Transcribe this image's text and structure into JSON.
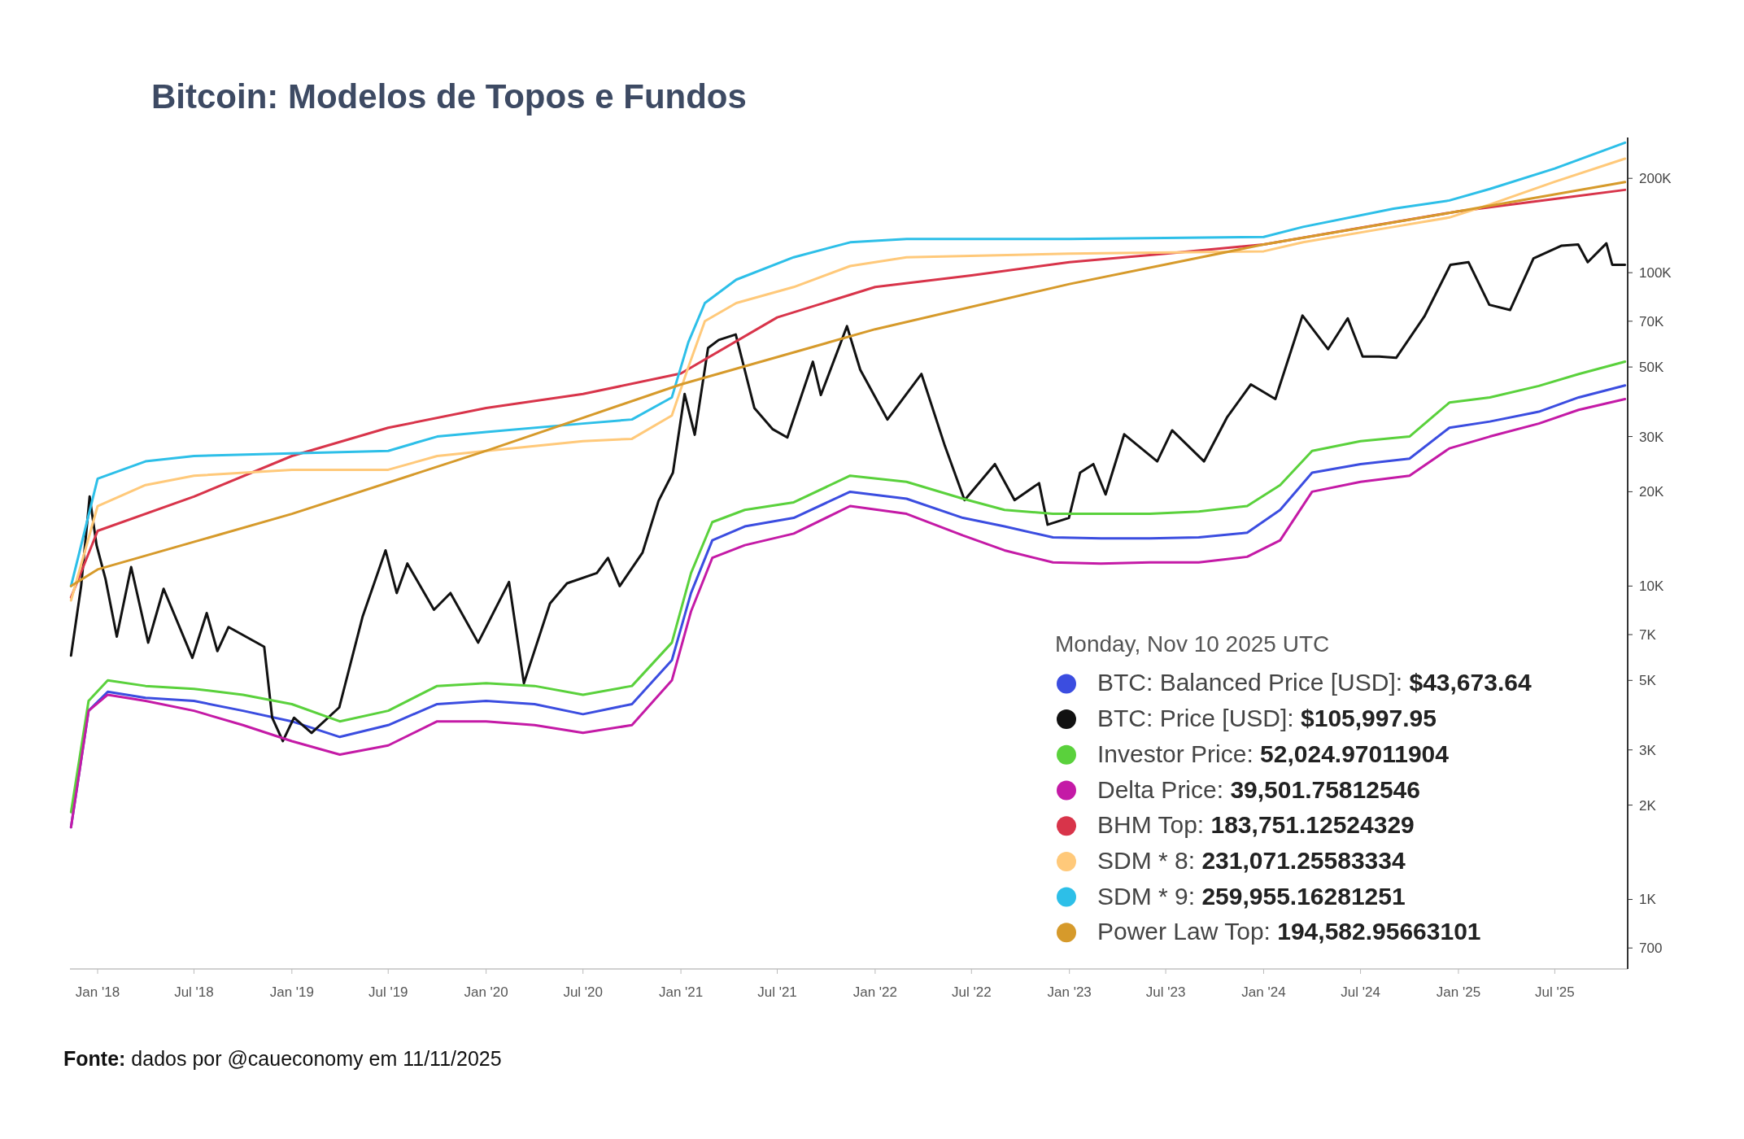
{
  "chart_data": {
    "type": "line",
    "title": "Bitcoin: Modelos de Topos e Fundos",
    "legend_title": "Monday, Nov 10 2025 UTC",
    "log": true,
    "grid": false,
    "legend": "bottom right",
    "xlim": [
      "2017-11-10",
      "2025-11-15"
    ],
    "ylim": [
      600,
      270000
    ],
    "xticks": [
      {
        "value": "2018-01-01",
        "label": "Jan '18"
      },
      {
        "value": "2018-07-01",
        "label": "Jul '18"
      },
      {
        "value": "2019-01-01",
        "label": "Jan '19"
      },
      {
        "value": "2019-07-01",
        "label": "Jul '19"
      },
      {
        "value": "2020-01-01",
        "label": "Jan '20"
      },
      {
        "value": "2020-07-01",
        "label": "Jul '20"
      },
      {
        "value": "2021-01-01",
        "label": "Jan '21"
      },
      {
        "value": "2021-07-01",
        "label": "Jul '21"
      },
      {
        "value": "2022-01-01",
        "label": "Jan '22"
      },
      {
        "value": "2022-07-01",
        "label": "Jul '22"
      },
      {
        "value": "2023-01-01",
        "label": "Jan '23"
      },
      {
        "value": "2023-07-01",
        "label": "Jul '23"
      },
      {
        "value": "2024-01-01",
        "label": "Jan '24"
      },
      {
        "value": "2024-07-01",
        "label": "Jul '24"
      },
      {
        "value": "2025-01-01",
        "label": "Jan '25"
      },
      {
        "value": "2025-07-01",
        "label": "Jul '25"
      }
    ],
    "yticks": [
      700,
      {
        "value": 1000,
        "label": "1K"
      },
      {
        "value": 2000,
        "label": "2K"
      },
      {
        "value": 3000,
        "label": "3K"
      },
      {
        "value": 5000,
        "label": "5K"
      },
      {
        "value": 7000,
        "label": "7K"
      },
      {
        "value": 10000,
        "label": "10K"
      },
      {
        "value": 20000,
        "label": "20K"
      },
      {
        "value": 30000,
        "label": "30K"
      },
      {
        "value": 50000,
        "label": "50K"
      },
      {
        "value": 70000,
        "label": "70K"
      },
      {
        "value": 100000,
        "label": "100K"
      },
      {
        "value": 200000,
        "label": "200K"
      }
    ],
    "series": [
      {
        "name": "BTC: Balanced Price [USD]: $43,673.64",
        "color": "#3b4de0",
        "x": [
          "2017-11-12",
          "2017-12-15",
          "2018-01-20",
          "2018-04-01",
          "2018-07-01",
          "2018-10-01",
          "2019-01-01",
          "2019-04-01",
          "2019-07-01",
          "2019-10-01",
          "2020-01-01",
          "2020-04-01",
          "2020-07-01",
          "2020-10-01",
          "2020-12-15",
          "2021-01-20",
          "2021-03-01",
          "2021-05-01",
          "2021-08-01",
          "2021-11-15",
          "2022-03-01",
          "2022-06-15",
          "2022-09-01",
          "2022-12-01",
          "2023-03-01",
          "2023-06-01",
          "2023-09-01",
          "2023-12-01",
          "2024-02-01",
          "2024-04-01",
          "2024-07-01",
          "2024-10-01",
          "2024-12-15",
          "2025-03-01",
          "2025-06-01",
          "2025-08-15",
          "2025-11-10"
        ],
        "values": [
          1700,
          4000,
          4600,
          4400,
          4300,
          4000,
          3700,
          3300,
          3600,
          4200,
          4300,
          4200,
          3900,
          4200,
          5800,
          9500,
          14000,
          15500,
          16500,
          20000,
          19000,
          16500,
          15500,
          14300,
          14200,
          14200,
          14300,
          14800,
          17500,
          23000,
          24500,
          25500,
          32000,
          33500,
          36000,
          40000,
          43673.64
        ]
      },
      {
        "name": "BTC: Price [USD]: $105,997.95",
        "color": "#111111",
        "x": [
          "2017-11-12",
          "2017-12-01",
          "2017-12-17",
          "2017-12-30",
          "2018-01-16",
          "2018-02-06",
          "2018-03-05",
          "2018-04-06",
          "2018-05-05",
          "2018-06-28",
          "2018-07-25",
          "2018-08-14",
          "2018-09-04",
          "2018-11-10",
          "2018-11-25",
          "2018-12-15",
          "2019-01-05",
          "2019-02-07",
          "2019-03-31",
          "2019-05-14",
          "2019-06-26",
          "2019-07-17",
          "2019-08-06",
          "2019-09-25",
          "2019-10-26",
          "2019-12-17",
          "2020-02-13",
          "2020-03-12",
          "2020-04-30",
          "2020-06-01",
          "2020-07-27",
          "2020-08-17",
          "2020-09-08",
          "2020-10-21",
          "2020-11-20",
          "2020-12-17",
          "2021-01-08",
          "2021-01-27",
          "2021-02-21",
          "2021-03-13",
          "2021-04-14",
          "2021-05-19",
          "2021-06-22",
          "2021-07-20",
          "2021-09-06",
          "2021-09-21",
          "2021-11-09",
          "2021-12-04",
          "2022-01-24",
          "2022-03-29",
          "2022-05-12",
          "2022-06-18",
          "2022-08-14",
          "2022-09-20",
          "2022-11-05",
          "2022-11-21",
          "2022-12-31",
          "2023-01-21",
          "2023-02-15",
          "2023-03-10",
          "2023-04-14",
          "2023-06-15",
          "2023-07-13",
          "2023-09-11",
          "2023-10-24",
          "2023-12-08",
          "2024-01-23",
          "2024-03-14",
          "2024-05-01",
          "2024-06-07",
          "2024-07-05",
          "2024-08-05",
          "2024-09-06",
          "2024-10-29",
          "2024-12-17",
          "2025-01-20",
          "2025-02-28",
          "2025-04-08",
          "2025-05-22",
          "2025-07-14",
          "2025-08-14",
          "2025-09-01",
          "2025-10-06",
          "2025-10-17",
          "2025-11-10"
        ],
        "values": [
          6000,
          10000,
          19300,
          13500,
          10500,
          6900,
          11500,
          6600,
          9800,
          5900,
          8200,
          6200,
          7400,
          6400,
          3800,
          3200,
          3800,
          3400,
          4100,
          8000,
          13000,
          9500,
          11800,
          8400,
          9500,
          6600,
          10300,
          4900,
          8800,
          10200,
          11000,
          12300,
          10000,
          12800,
          18700,
          23000,
          41000,
          30400,
          57500,
          61000,
          63500,
          37000,
          31700,
          29800,
          52000,
          40700,
          67500,
          49000,
          34000,
          47500,
          28000,
          18800,
          24500,
          18800,
          21300,
          15700,
          16500,
          23000,
          24500,
          19600,
          30500,
          25000,
          31400,
          25000,
          34500,
          44000,
          39500,
          73000,
          57000,
          71500,
          54000,
          54000,
          53500,
          72500,
          106000,
          108000,
          79000,
          76000,
          111000,
          122000,
          123000,
          108000,
          124000,
          106000,
          105997.95
        ]
      },
      {
        "name": "Investor Price: 52,024.97011904",
        "color": "#5ad13c",
        "x": [
          "2017-11-12",
          "2017-12-15",
          "2018-01-20",
          "2018-04-01",
          "2018-07-01",
          "2018-10-01",
          "2019-01-01",
          "2019-04-01",
          "2019-07-01",
          "2019-10-01",
          "2020-01-01",
          "2020-04-01",
          "2020-07-01",
          "2020-10-01",
          "2020-12-15",
          "2021-01-20",
          "2021-03-01",
          "2021-05-01",
          "2021-08-01",
          "2021-11-15",
          "2022-03-01",
          "2022-06-15",
          "2022-09-01",
          "2022-12-01",
          "2023-03-01",
          "2023-06-01",
          "2023-09-01",
          "2023-12-01",
          "2024-02-01",
          "2024-04-01",
          "2024-07-01",
          "2024-10-01",
          "2024-12-15",
          "2025-03-01",
          "2025-06-01",
          "2025-08-15",
          "2025-11-10"
        ],
        "values": [
          1900,
          4300,
          5000,
          4800,
          4700,
          4500,
          4200,
          3700,
          4000,
          4800,
          4900,
          4800,
          4500,
          4800,
          6600,
          11000,
          16000,
          17500,
          18500,
          22500,
          21500,
          19000,
          17500,
          17000,
          17000,
          17000,
          17300,
          18000,
          21000,
          27000,
          29000,
          30000,
          38500,
          40000,
          43500,
          47500,
          52024.97
        ]
      },
      {
        "name": "Delta Price: 39,501.75812546",
        "color": "#c41aa6",
        "x": [
          "2017-11-12",
          "2017-12-15",
          "2018-01-20",
          "2018-04-01",
          "2018-07-01",
          "2018-10-01",
          "2019-01-01",
          "2019-04-01",
          "2019-07-01",
          "2019-10-01",
          "2020-01-01",
          "2020-04-01",
          "2020-07-01",
          "2020-10-01",
          "2020-12-15",
          "2021-01-20",
          "2021-03-01",
          "2021-05-01",
          "2021-08-01",
          "2021-11-15",
          "2022-03-01",
          "2022-06-15",
          "2022-09-01",
          "2022-12-01",
          "2023-03-01",
          "2023-06-01",
          "2023-09-01",
          "2023-12-01",
          "2024-02-01",
          "2024-04-01",
          "2024-07-01",
          "2024-10-01",
          "2024-12-15",
          "2025-03-01",
          "2025-06-01",
          "2025-08-15",
          "2025-11-10"
        ],
        "values": [
          1700,
          4000,
          4500,
          4300,
          4000,
          3600,
          3200,
          2900,
          3100,
          3700,
          3700,
          3600,
          3400,
          3600,
          5000,
          8300,
          12300,
          13500,
          14700,
          18000,
          17000,
          14500,
          13000,
          11900,
          11800,
          11900,
          11900,
          12400,
          14000,
          20000,
          21500,
          22500,
          27500,
          30000,
          33000,
          36500,
          39501.76
        ]
      },
      {
        "name": "BHM Top: 183,751.12524329",
        "color": "#d8344a",
        "x": [
          "2017-11-12",
          "2018-01-01",
          "2018-07-01",
          "2019-01-01",
          "2019-07-01",
          "2020-01-01",
          "2020-07-01",
          "2021-01-01",
          "2021-07-01",
          "2022-01-01",
          "2022-07-01",
          "2023-01-01",
          "2023-07-01",
          "2024-01-01",
          "2024-07-01",
          "2025-01-01",
          "2025-07-01",
          "2025-11-10"
        ],
        "values": [
          9200,
          15000,
          19300,
          26000,
          32000,
          37000,
          41000,
          47700,
          72000,
          90000,
          98000,
          108000,
          115000,
          123000,
          139000,
          157000,
          172000,
          183751.13
        ]
      },
      {
        "name": "SDM * 8: 231,071.25583334",
        "color": "#ffc97a",
        "x": [
          "2017-11-12",
          "2018-01-01",
          "2018-04-01",
          "2018-07-01",
          "2019-01-01",
          "2019-07-01",
          "2019-10-01",
          "2020-01-01",
          "2020-07-01",
          "2020-10-01",
          "2020-12-15",
          "2021-01-15",
          "2021-02-15",
          "2021-04-15",
          "2021-08-01",
          "2021-11-15",
          "2022-03-01",
          "2023-01-01",
          "2024-01-01",
          "2024-03-15",
          "2024-09-01",
          "2024-12-15",
          "2025-03-01",
          "2025-07-01",
          "2025-11-10"
        ],
        "values": [
          9000,
          18000,
          21000,
          22500,
          23500,
          23500,
          26000,
          27000,
          29000,
          29500,
          35000,
          50000,
          70000,
          80000,
          90000,
          105000,
          112000,
          115000,
          117000,
          125000,
          140000,
          150000,
          165000,
          195000,
          231071.26
        ]
      },
      {
        "name": "SDM * 9: 259,955.16281251",
        "color": "#2dbfe8",
        "x": [
          "2017-11-12",
          "2018-01-01",
          "2018-04-01",
          "2018-07-01",
          "2019-01-01",
          "2019-07-01",
          "2019-10-01",
          "2020-01-01",
          "2020-07-01",
          "2020-10-01",
          "2020-12-15",
          "2021-01-15",
          "2021-02-15",
          "2021-04-15",
          "2021-08-01",
          "2021-11-15",
          "2022-03-01",
          "2023-01-01",
          "2024-01-01",
          "2024-03-15",
          "2024-09-01",
          "2024-12-15",
          "2025-03-01",
          "2025-07-01",
          "2025-11-10"
        ],
        "values": [
          10000,
          22000,
          25000,
          26000,
          26500,
          27000,
          30000,
          31000,
          33000,
          34000,
          40000,
          60000,
          80000,
          95000,
          112000,
          125000,
          128000,
          128000,
          130000,
          140000,
          160000,
          170000,
          185000,
          215000,
          259955.16
        ]
      },
      {
        "name": "Power Law Top: 194,582.95663101",
        "color": "#d69a2b",
        "x": [
          "2017-11-12",
          "2018-01-01",
          "2019-01-01",
          "2020-01-01",
          "2021-01-01",
          "2022-01-01",
          "2023-01-01",
          "2024-01-01",
          "2025-01-01",
          "2025-11-10"
        ],
        "values": [
          10000,
          11300,
          17000,
          27000,
          44000,
          66000,
          92000,
          123000,
          157000,
          194582.96
        ]
      }
    ],
    "annotations": [
      "Fonte: dados por @caueconomy em 11/11/2025"
    ]
  }
}
